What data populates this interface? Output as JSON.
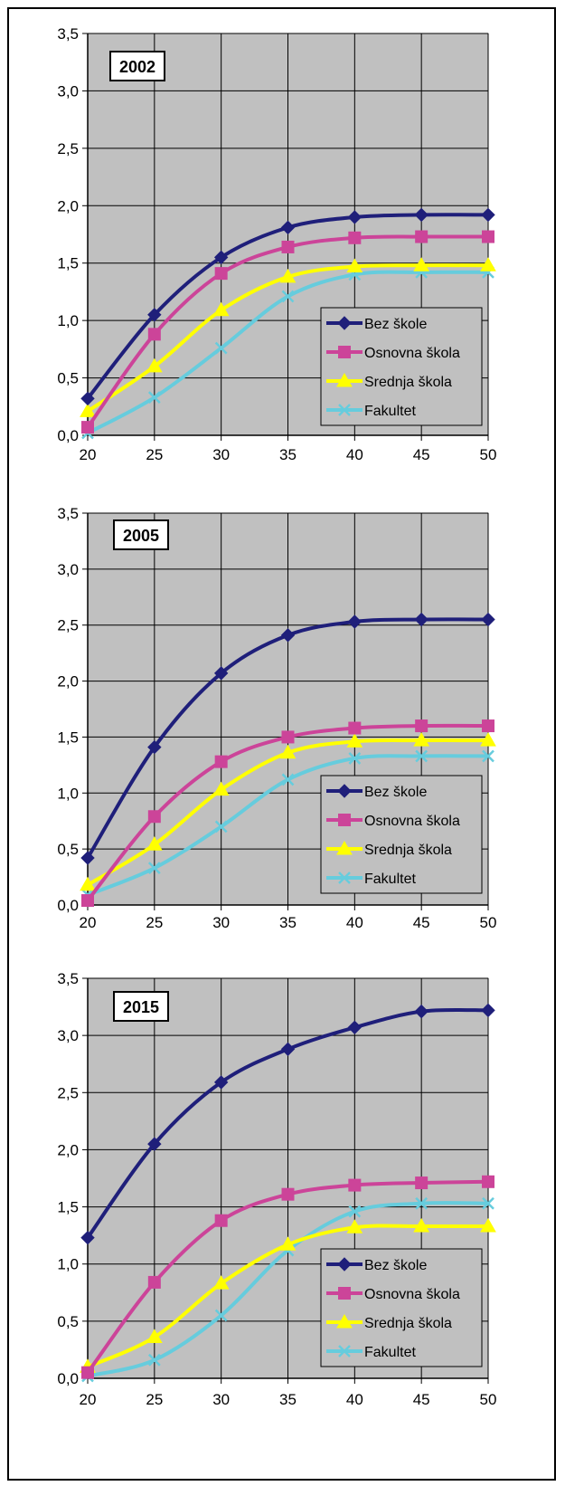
{
  "chart_data": [
    {
      "type": "line",
      "title": "2002",
      "x": [
        20,
        25,
        30,
        35,
        40,
        45,
        50
      ],
      "xticks": [
        "20",
        "25",
        "30",
        "35",
        "40",
        "45",
        "50"
      ],
      "yticks": [
        "0,0",
        "0,5",
        "1,0",
        "1,5",
        "2,0",
        "2,5",
        "3,0",
        "3,5"
      ],
      "ylim": [
        0,
        3.5
      ],
      "xlim": [
        20,
        50
      ],
      "grid": true,
      "legend_position": "bottom-right",
      "series": [
        {
          "name": "Bez škole",
          "color": "#1f1f7a",
          "marker": "diamond",
          "values": [
            0.32,
            1.05,
            1.55,
            1.81,
            1.9,
            1.92,
            1.92
          ]
        },
        {
          "name": "Osnovna škola",
          "color": "#cc4499",
          "marker": "square",
          "values": [
            0.07,
            0.88,
            1.41,
            1.64,
            1.72,
            1.73,
            1.73
          ]
        },
        {
          "name": "Srednja škola",
          "color": "#ffff00",
          "marker": "triangle",
          "values": [
            0.21,
            0.6,
            1.09,
            1.38,
            1.47,
            1.48,
            1.48
          ]
        },
        {
          "name": "Fakultet",
          "color": "#66ccdd",
          "marker": "x",
          "values": [
            0.02,
            0.33,
            0.76,
            1.21,
            1.4,
            1.42,
            1.42
          ]
        }
      ]
    },
    {
      "type": "line",
      "title": "2005",
      "x": [
        20,
        25,
        30,
        35,
        40,
        45,
        50
      ],
      "xticks": [
        "20",
        "25",
        "30",
        "35",
        "40",
        "45",
        "50"
      ],
      "yticks": [
        "0,0",
        "0,5",
        "1,0",
        "1,5",
        "2,0",
        "2,5",
        "3,0",
        "3,5"
      ],
      "ylim": [
        0,
        3.5
      ],
      "xlim": [
        20,
        50
      ],
      "grid": true,
      "legend_position": "bottom-right",
      "series": [
        {
          "name": "Bez škole",
          "color": "#1f1f7a",
          "marker": "diamond",
          "values": [
            0.42,
            1.41,
            2.07,
            2.41,
            2.53,
            2.55,
            2.55
          ]
        },
        {
          "name": "Osnovna škola",
          "color": "#cc4499",
          "marker": "square",
          "values": [
            0.04,
            0.79,
            1.28,
            1.5,
            1.58,
            1.6,
            1.6
          ]
        },
        {
          "name": "Srednja škola",
          "color": "#ffff00",
          "marker": "triangle",
          "values": [
            0.18,
            0.54,
            1.03,
            1.36,
            1.46,
            1.47,
            1.47
          ]
        },
        {
          "name": "Fakultet",
          "color": "#66ccdd",
          "marker": "x",
          "values": [
            0.09,
            0.33,
            0.7,
            1.12,
            1.31,
            1.33,
            1.33
          ]
        }
      ]
    },
    {
      "type": "line",
      "title": "2015",
      "x": [
        20,
        25,
        30,
        35,
        40,
        45,
        50
      ],
      "xticks": [
        "20",
        "25",
        "30",
        "35",
        "40",
        "45",
        "50"
      ],
      "yticks": [
        "0,0",
        "0,5",
        "1,0",
        "1,5",
        "2,0",
        "2,5",
        "3,0",
        "3,5"
      ],
      "ylim": [
        0,
        3.5
      ],
      "xlim": [
        20,
        50
      ],
      "grid": true,
      "legend_position": "bottom-right",
      "series": [
        {
          "name": "Bez škole",
          "color": "#1f1f7a",
          "marker": "diamond",
          "values": [
            1.23,
            2.05,
            2.59,
            2.88,
            3.07,
            3.21,
            3.22
          ]
        },
        {
          "name": "Osnovna škola",
          "color": "#cc4499",
          "marker": "square",
          "values": [
            0.05,
            0.84,
            1.38,
            1.61,
            1.69,
            1.71,
            1.72
          ]
        },
        {
          "name": "Srednja škola",
          "color": "#ffff00",
          "marker": "triangle",
          "values": [
            0.1,
            0.36,
            0.83,
            1.17,
            1.32,
            1.33,
            1.33
          ]
        },
        {
          "name": "Fakultet",
          "color": "#66ccdd",
          "marker": "x",
          "values": [
            0.02,
            0.16,
            0.55,
            1.12,
            1.46,
            1.53,
            1.53
          ]
        }
      ]
    }
  ]
}
